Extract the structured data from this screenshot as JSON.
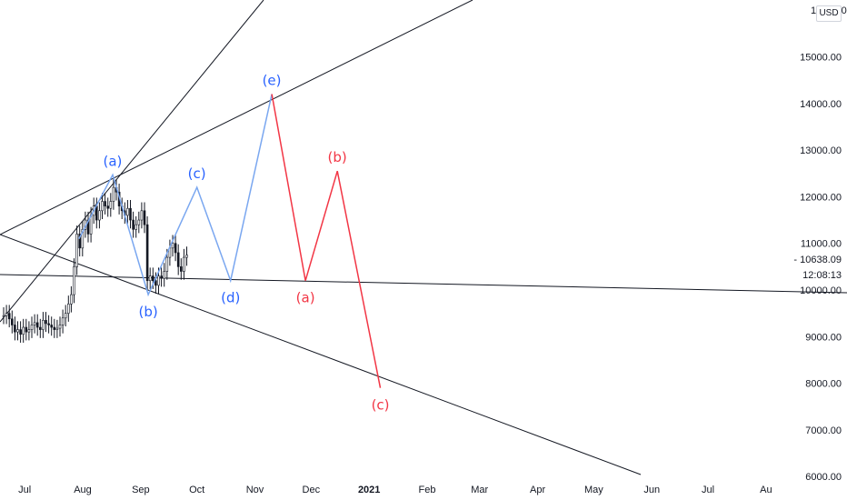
{
  "currency": "USD",
  "price_badge": "10638.09",
  "countdown": "12:08:13",
  "top_label_partial": "16000.00",
  "colors": {
    "blue_wave": "#7aa7f0",
    "blue_label": "#2962ff",
    "red_wave": "#f23645",
    "trendline": "#131722",
    "grid": "#f0f3fa",
    "candle": "#131722"
  },
  "chart_data": {
    "type": "line",
    "xlabel": "",
    "ylabel": "",
    "x_ticks": [
      "Jul",
      "Aug",
      "Sep",
      "Oct",
      "Nov",
      "Dec",
      "2021",
      "Feb",
      "Mar",
      "Apr",
      "May",
      "Jun",
      "Jul",
      "Au"
    ],
    "y_ticks": [
      16000,
      15000,
      14000,
      13000,
      12000,
      11000,
      10000,
      9000,
      8000,
      7000,
      6000
    ],
    "y_tick_labels": [
      "16000.00",
      "15000.00",
      "14000.00",
      "13000.00",
      "12000.00",
      "11000.00",
      "10000.00",
      "9000.00",
      "8000.00",
      "7000.00",
      "6000.00"
    ],
    "ylim": [
      6000,
      16200
    ],
    "candles_close": [
      9450,
      9500,
      9380,
      9250,
      9100,
      9150,
      9050,
      9200,
      9100,
      9150,
      9250,
      9300,
      9200,
      9150,
      9350,
      9280,
      9250,
      9200,
      9150,
      9180,
      9250,
      9400,
      9500,
      9700,
      9900,
      10500,
      11200,
      10900,
      11300,
      11500,
      11200,
      11600,
      11800,
      11500,
      11700,
      11900,
      11800,
      11750,
      11900,
      12200,
      12100,
      11800,
      11700,
      11600,
      11750,
      11500,
      11300,
      11400,
      11500,
      11700,
      11400,
      10200,
      10300,
      10200,
      10100,
      10300,
      10250,
      10400,
      10700,
      10900,
      11000,
      10800,
      10500,
      10400,
      10700,
      10750
    ],
    "elliott_blue": [
      {
        "date": "2020-07-30",
        "price": 11100,
        "label": ""
      },
      {
        "date": "2020-08-17",
        "price": 12470,
        "label": "(a)"
      },
      {
        "date": "2020-09-05",
        "price": 9900,
        "label": "(b)"
      },
      {
        "date": "2020-10-01",
        "price": 12200,
        "label": "(c)"
      },
      {
        "date": "2020-10-19",
        "price": 10200,
        "label": "(d)"
      },
      {
        "date": "2020-11-10",
        "price": 14200,
        "label": "(e)"
      }
    ],
    "elliott_red": [
      {
        "date": "2020-11-10",
        "price": 14200,
        "label": ""
      },
      {
        "date": "2020-11-28",
        "price": 10200,
        "label": "(a)"
      },
      {
        "date": "2020-12-15",
        "price": 12550,
        "label": "(b)"
      },
      {
        "date": "2021-01-07",
        "price": 7900,
        "label": "(c)"
      }
    ]
  }
}
